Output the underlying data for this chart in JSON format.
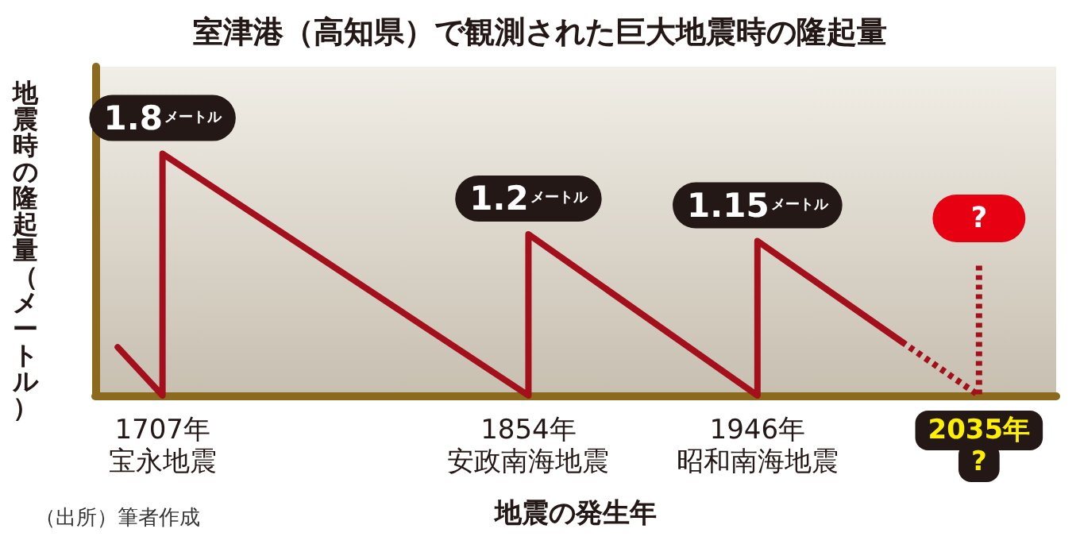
{
  "chart_data": {
    "type": "line",
    "title": "室津港（高知県）で観測された巨大地震時の隆起量",
    "xlabel": "地震の発生年",
    "ylabel": "地震時の隆起量（メートル）",
    "annotations": [
      "（出所）筆者作成"
    ],
    "xlim": [
      1680,
      2066
    ],
    "xticks": [
      {
        "value": 1707,
        "label": "1707年宝永地震"
      },
      {
        "value": 1854,
        "label": "1854年安政南海地震"
      },
      {
        "value": 1946,
        "label": "1946年昭和南海地震"
      },
      {
        "value": 2035,
        "label": "2035年?"
      }
    ],
    "tick_labels": "x",
    "grid": false,
    "marker": "none",
    "series": [
      {
        "color": "#a3101c",
        "line_style": "solid",
        "x": [
          1689,
          1707,
          1707,
          1854,
          1854,
          1946,
          1946,
          2004
        ],
        "values": [
          0.36,
          0,
          1.8,
          0,
          1.2,
          0,
          1.15,
          0.4
        ],
        "value_labels": [
          null,
          null,
          "1.8メートル",
          null,
          "1.2メートル",
          null,
          "1.15メートル",
          null
        ]
      },
      {
        "color": "#a3101c",
        "line_style": "dotted",
        "x": [
          2004,
          2035,
          2035
        ],
        "values": [
          0.4,
          0,
          1.0
        ],
        "value_labels": [
          null,
          null,
          "?"
        ]
      }
    ]
  }
}
